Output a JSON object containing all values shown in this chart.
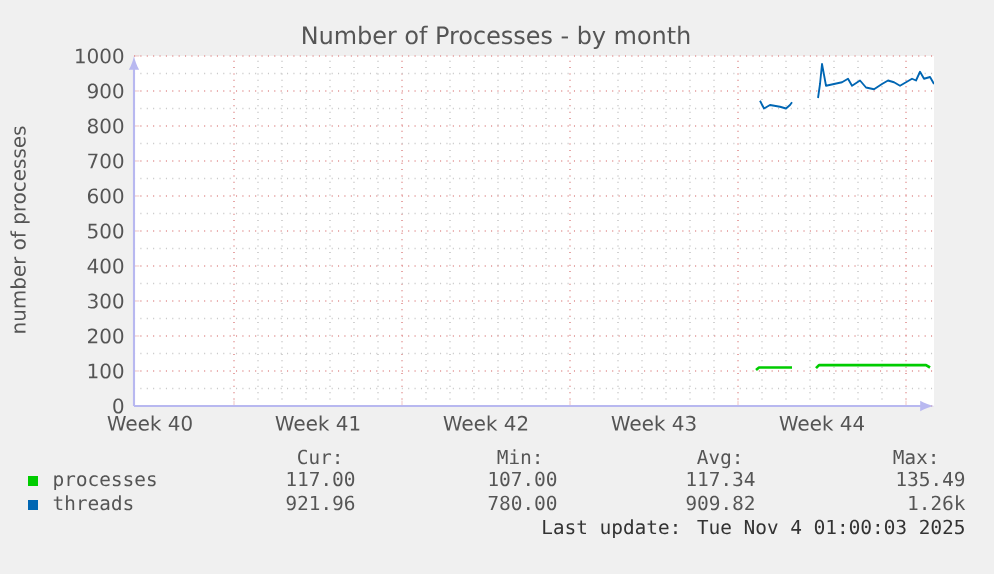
{
  "chart_data": {
    "type": "line",
    "title": "Number of Processes - by month",
    "ylabel": "number of processes",
    "xlim": [
      "2025-10-01T20:00",
      "2025-11-04T04:00"
    ],
    "ylim": [
      0,
      1000
    ],
    "xticks": [
      {
        "value": "2025-10-02T12:00",
        "label": "Week 40"
      },
      {
        "value": "2025-10-09T12:00",
        "label": "Week 41"
      },
      {
        "value": "2025-10-16T12:00",
        "label": "Week 42"
      },
      {
        "value": "2025-10-23T12:00",
        "label": "Week 43"
      },
      {
        "value": "2025-10-30T12:00",
        "label": "Week 44"
      },
      {
        "value": "2025-10-06",
        "label": null
      },
      {
        "value": "2025-10-13",
        "label": null
      },
      {
        "value": "2025-10-20",
        "label": null
      },
      {
        "value": "2025-10-27",
        "label": null
      },
      {
        "value": "2025-11-03",
        "label": null
      }
    ],
    "yticks": [
      0,
      100,
      200,
      300,
      400,
      500,
      600,
      700,
      800,
      900,
      1000
    ],
    "grid": true,
    "legend": "bottom",
    "series": [
      {
        "name": "processes",
        "color": "#00cc00",
        "x": [
          "2025-10-27T18:00",
          "2025-10-27T21:00",
          "2025-10-29T06:00",
          "2025-10-29T18:00",
          "2025-10-30T06:00",
          "2025-10-30T09:00",
          "2025-11-03T20:00",
          "2025-11-04T00:00"
        ],
        "values": [
          103,
          110,
          110,
          null,
          108,
          117,
          117,
          110
        ]
      },
      {
        "name": "threads",
        "color": "#0066b3",
        "x": [
          "2025-10-27T22:00",
          "2025-10-28T02:00",
          "2025-10-28T08:00",
          "2025-10-28T18:00",
          "2025-10-29T00:00",
          "2025-10-29T04:00",
          "2025-10-29T06:00",
          "2025-10-29T18:00",
          "2025-10-30T08:00",
          "2025-10-30T10:00",
          "2025-10-30T12:00",
          "2025-10-30T16:00",
          "2025-10-31T00:00",
          "2025-10-31T08:00",
          "2025-10-31T14:00",
          "2025-10-31T18:00",
          "2025-11-01T02:00",
          "2025-11-01T08:00",
          "2025-11-01T16:00",
          "2025-11-02T00:00",
          "2025-11-02T06:00",
          "2025-11-02T12:00",
          "2025-11-02T18:00",
          "2025-11-03T00:00",
          "2025-11-03T06:00",
          "2025-11-03T10:00",
          "2025-11-03T14:00",
          "2025-11-03T18:00",
          "2025-11-04T00:00",
          "2025-11-04T04:00"
        ],
        "values": [
          872,
          850,
          860,
          855,
          850,
          860,
          868,
          null,
          880,
          920,
          977,
          915,
          920,
          925,
          935,
          915,
          930,
          910,
          905,
          920,
          930,
          925,
          915,
          925,
          935,
          930,
          955,
          935,
          940,
          920
        ]
      }
    ],
    "annotations": [
      "Cur:",
      "Min:",
      "Avg:",
      "Max:",
      "117.00",
      "107.00",
      "117.34",
      "135.49",
      "921.96",
      "780.00",
      "909.82",
      "1.26k",
      "Last update: Tue Nov  4 01:00:03 2025"
    ]
  }
}
